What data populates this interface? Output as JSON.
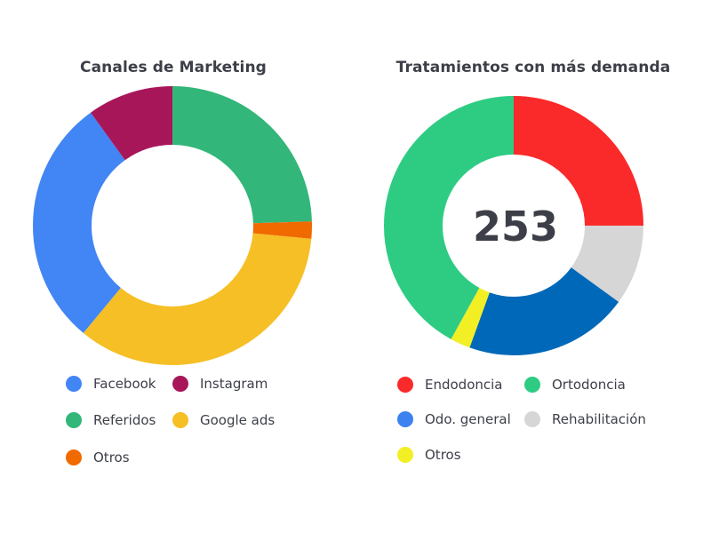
{
  "charts": [
    {
      "title": "Canales de Marketing",
      "center_label": "",
      "legend": [
        {
          "label": "Facebook",
          "color": "#4285f4"
        },
        {
          "label": "Instagram",
          "color": "#a8165a"
        },
        {
          "label": "Referidos",
          "color": "#33b679"
        },
        {
          "label": "Google ads",
          "color": "#f6bf26"
        },
        {
          "label": "Otros",
          "color": "#f06a00"
        }
      ]
    },
    {
      "title": "Tratamientos con más demanda",
      "center_label": "253",
      "legend": [
        {
          "label": "Endodoncia",
          "color": "#fb2a2a"
        },
        {
          "label": "Ortodoncia",
          "color": "#2ecc83"
        },
        {
          "label": "Odo. general",
          "color": "#3b82f0"
        },
        {
          "label": "Rehabilitación",
          "color": "#d6d6d6"
        },
        {
          "label": "Otros",
          "color": "#f2ef24"
        }
      ]
    }
  ],
  "chart_data": [
    {
      "type": "pie",
      "title": "Canales de Marketing",
      "donut": true,
      "start": "top, clockwise",
      "slices": [
        {
          "label": "Referidos",
          "value": 24.5,
          "color": "#33b679"
        },
        {
          "label": "Otros",
          "value": 2.0,
          "color": "#f06a00"
        },
        {
          "label": "Google ads",
          "value": 34.5,
          "color": "#f6bf26"
        },
        {
          "label": "Facebook",
          "value": 29.0,
          "color": "#4285f4"
        },
        {
          "label": "Instagram",
          "value": 10.0,
          "color": "#a8165a"
        }
      ],
      "legend_position": "bottom"
    },
    {
      "type": "pie",
      "title": "Tratamientos con más demanda",
      "donut": true,
      "total": 253,
      "start": "top, clockwise",
      "slices": [
        {
          "label": "Endodoncia",
          "value": 25.0,
          "color": "#fb2a2a"
        },
        {
          "label": "Rehabilitación",
          "value": 10.0,
          "color": "#d6d6d6"
        },
        {
          "label": "Odo. general",
          "value": 20.5,
          "color": "#0068b8"
        },
        {
          "label": "Otros",
          "value": 2.5,
          "color": "#f2ef24"
        },
        {
          "label": "Ortodoncia",
          "value": 42.0,
          "color": "#2ecc83"
        }
      ],
      "legend_position": "bottom"
    }
  ]
}
